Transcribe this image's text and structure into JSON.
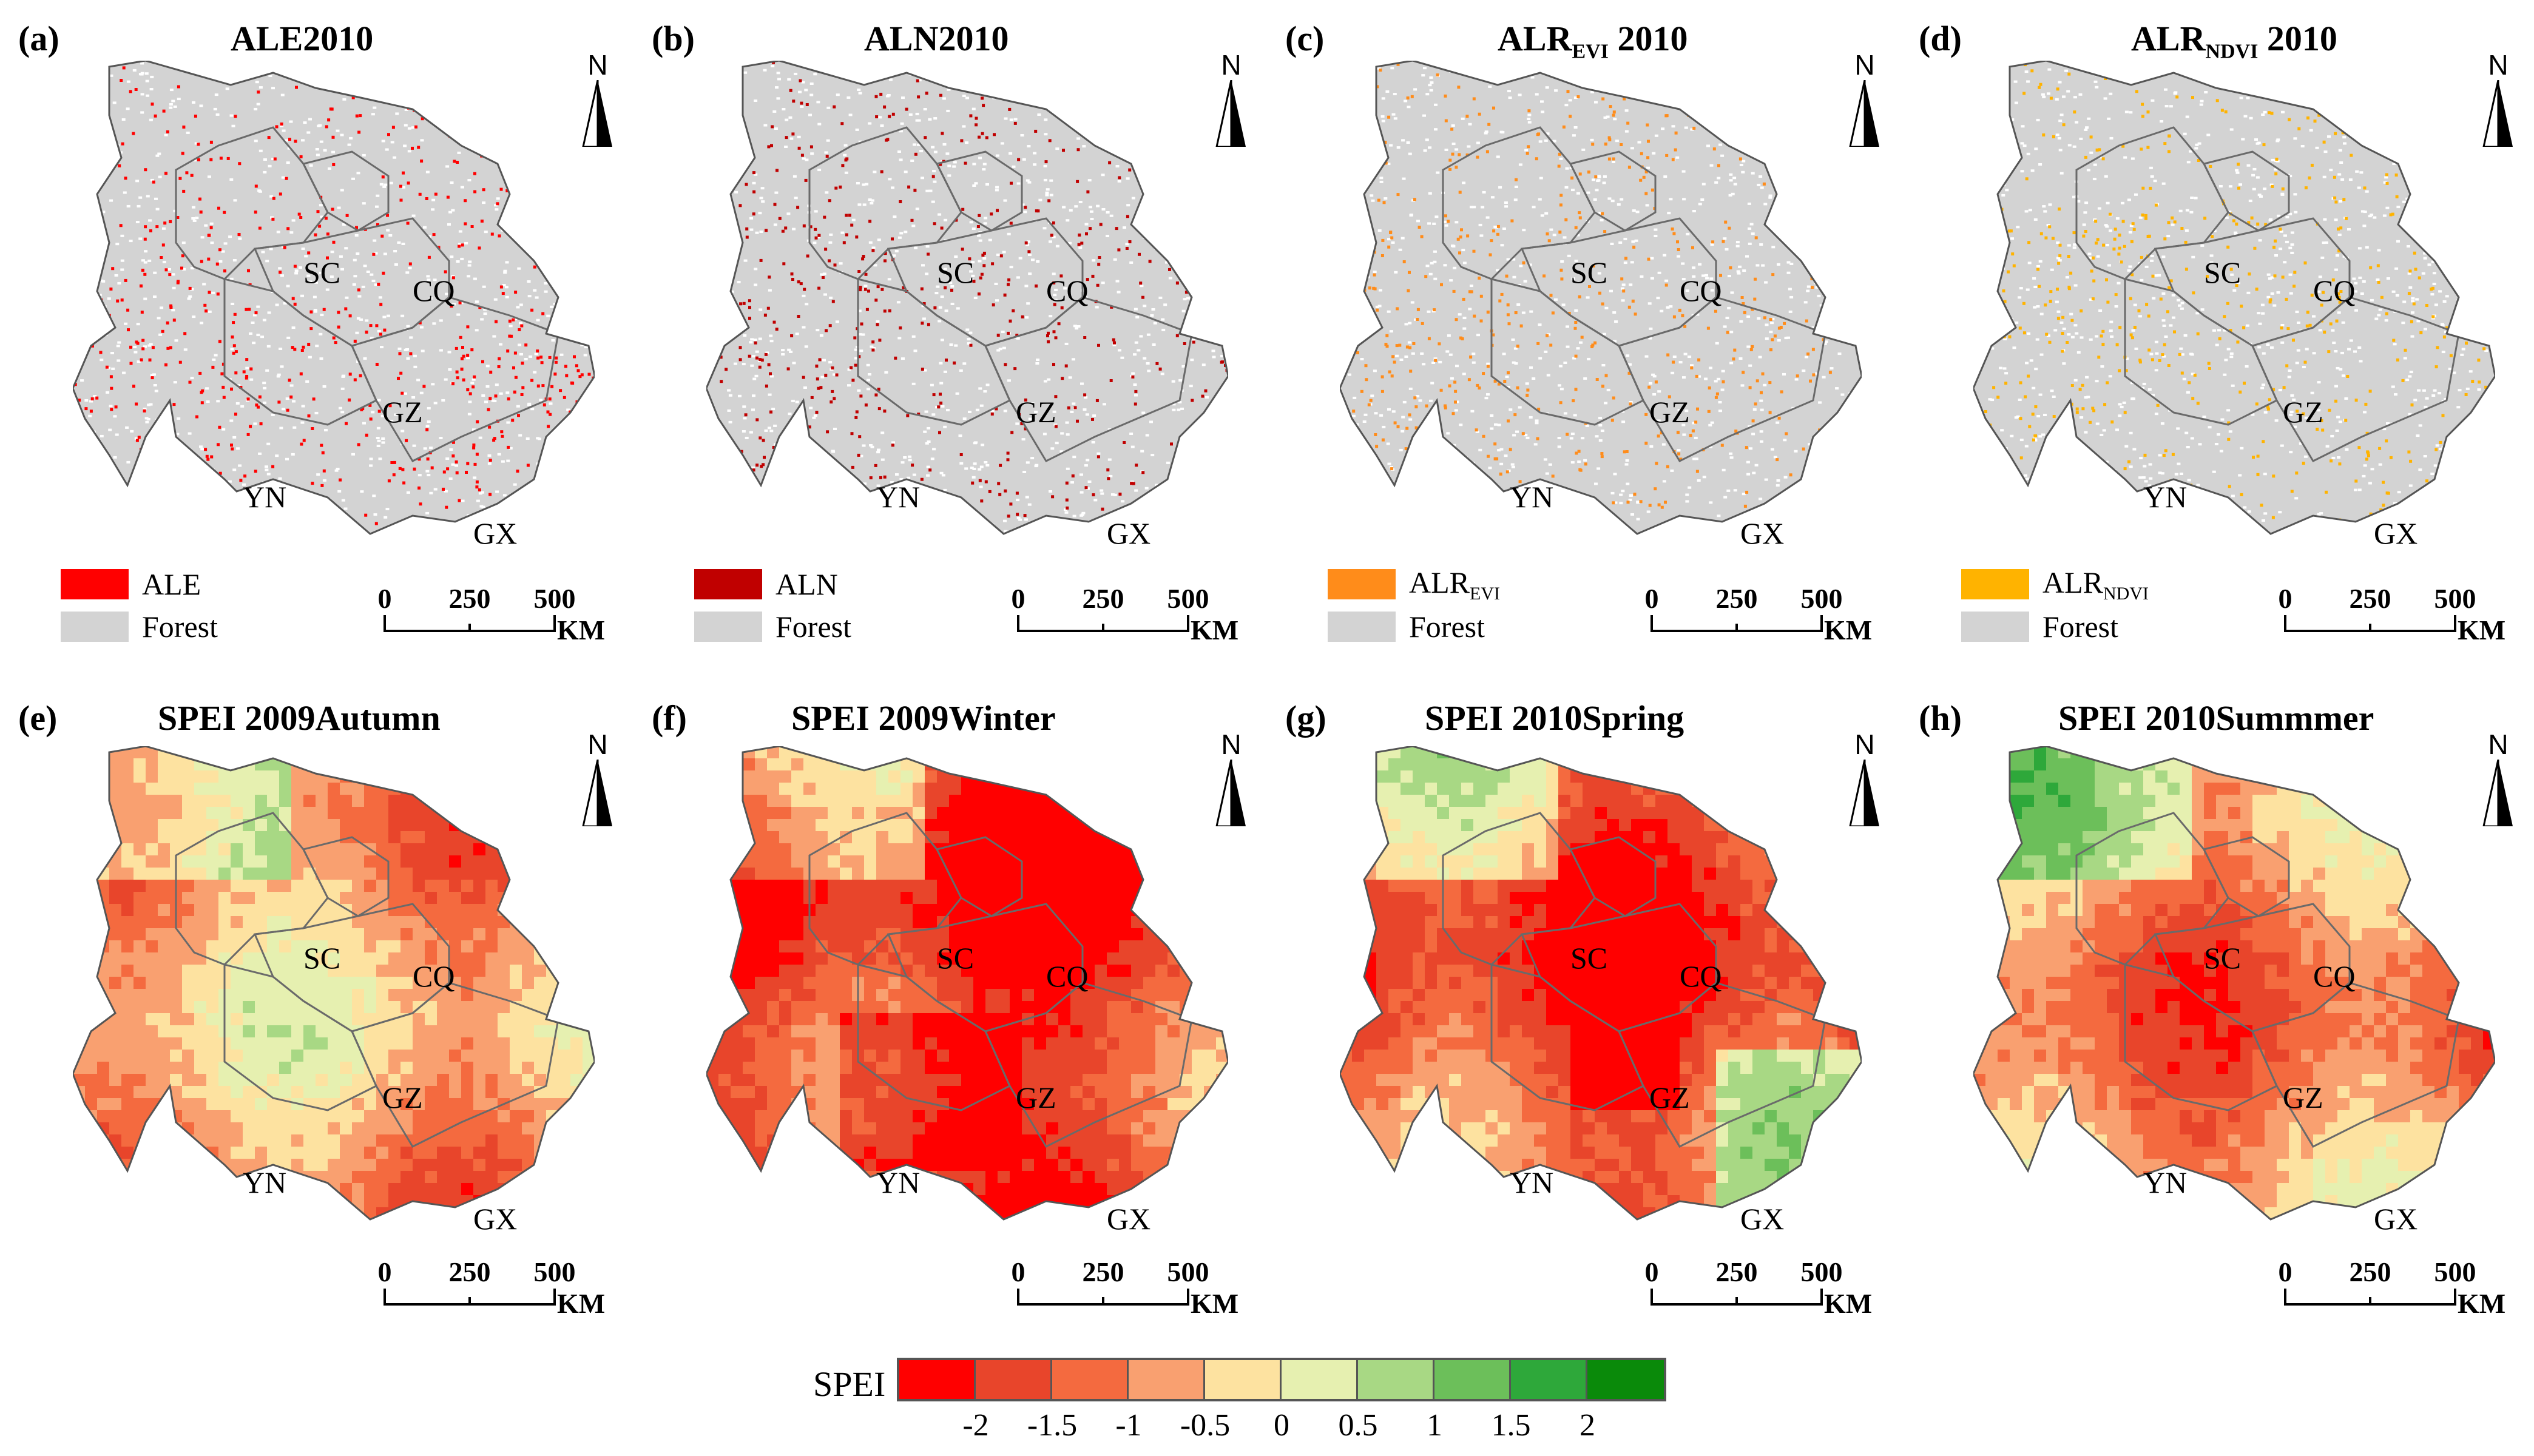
{
  "panels": [
    {
      "label": "(a)",
      "title": "ALE2010",
      "type": "loss",
      "color": "#ff0000",
      "legend": [
        {
          "label": "ALE",
          "color": "#ff0000"
        },
        {
          "label": "Forest",
          "color": "#d3d3d3"
        }
      ]
    },
    {
      "label": "(b)",
      "title": "ALN2010",
      "type": "loss",
      "color": "#c00000",
      "legend": [
        {
          "label": "ALN",
          "color": "#c00000"
        },
        {
          "label": "Forest",
          "color": "#d3d3d3"
        }
      ]
    },
    {
      "label": "(c)",
      "title_main": "ALR",
      "title_sub": "EVI",
      "title_rest": " 2010",
      "type": "loss",
      "color": "#ff8c1a",
      "legend": [
        {
          "label": "ALR",
          "sub": "EVI",
          "color": "#ff8c1a"
        },
        {
          "label": "Forest",
          "color": "#d3d3d3"
        }
      ]
    },
    {
      "label": "(d)",
      "title_main": "ALR",
      "title_sub": "NDVI",
      "title_rest": " 2010",
      "type": "loss",
      "color": "#ffb300",
      "legend": [
        {
          "label": "ALR",
          "sub": "NDVI",
          "color": "#ffb300"
        },
        {
          "label": "Forest",
          "color": "#d3d3d3"
        }
      ]
    },
    {
      "label": "(e)",
      "title": "SPEI 2009Autumn",
      "type": "spei",
      "bias": 0.45
    },
    {
      "label": "(f)",
      "title": "SPEI 2009Winter",
      "type": "spei",
      "bias": -0.55
    },
    {
      "label": "(g)",
      "title": "SPEI 2010Spring",
      "type": "spei",
      "bias": -0.35
    },
    {
      "label": "(h)",
      "title": "SPEI 2010Summmer",
      "type": "spei",
      "bias": 0.25
    }
  ],
  "regions": [
    "SC",
    "CQ",
    "GZ",
    "YN",
    "GX"
  ],
  "north_label": "N",
  "scale_ticks": [
    "0",
    "250",
    "500"
  ],
  "scale_unit": "KM",
  "spei_legend": {
    "title": "SPEI",
    "colors": [
      "#ff0000",
      "#e8452b",
      "#f46a3f",
      "#f9a070",
      "#fde2a0",
      "#e6f0b0",
      "#a8d884",
      "#6cbf5a",
      "#2ea83a",
      "#0a8a0a"
    ],
    "ticks": [
      "-2",
      "-1.5",
      "-1",
      "-0.5",
      "0",
      "0.5",
      "1",
      "1.5",
      "2"
    ]
  },
  "forest_color": "#d3d3d3"
}
